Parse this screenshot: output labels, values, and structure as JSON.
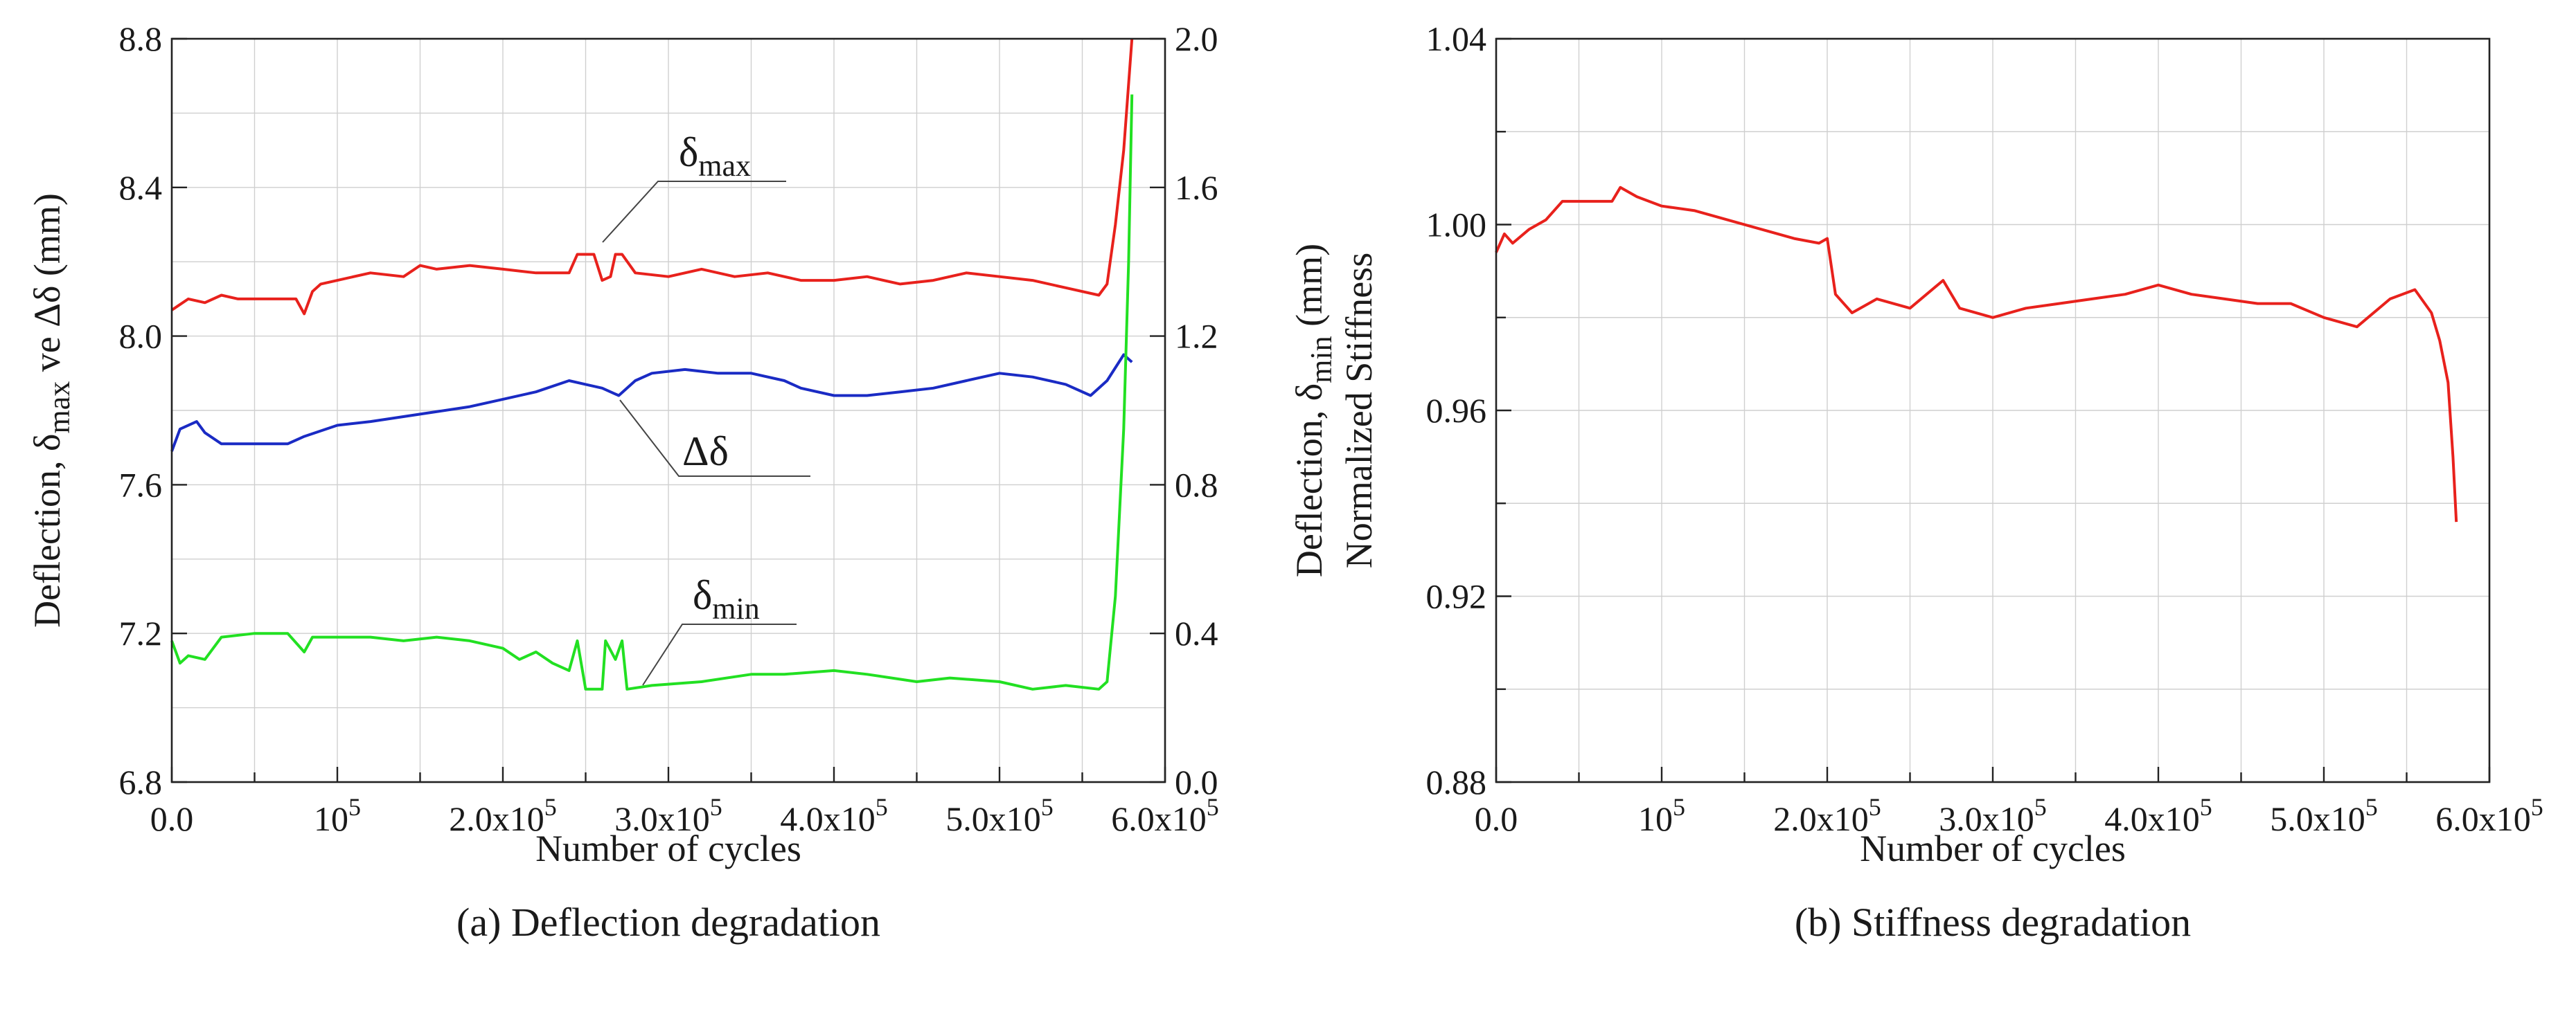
{
  "chart_data": [
    {
      "id": "a",
      "type": "line",
      "caption": "(a) Deflection degradation",
      "xlabel": "Number of cycles",
      "ylabel_left": {
        "main": "Deflection, δ",
        "sub": "max",
        "rest": " ve Δδ (mm)"
      },
      "ylabel_right": {
        "main": "Deflection, δ",
        "sub": "min",
        "rest": " (mm)"
      },
      "xlim": [
        0,
        600000
      ],
      "ylim_left": [
        6.8,
        8.8
      ],
      "ylim_right": [
        0.0,
        2.0
      ],
      "grid": true,
      "x_ticks": [
        {
          "value": 0,
          "base": "0.0",
          "sup": ""
        },
        {
          "value": 100000,
          "base": "10",
          "sup": "5"
        },
        {
          "value": 200000,
          "base": "2.0x10",
          "sup": "5"
        },
        {
          "value": 300000,
          "base": "3.0x10",
          "sup": "5"
        },
        {
          "value": 400000,
          "base": "4.0x10",
          "sup": "5"
        },
        {
          "value": 500000,
          "base": "5.0x10",
          "sup": "5"
        },
        {
          "value": 600000,
          "base": "6.0x10",
          "sup": "5"
        }
      ],
      "y_ticks_left": [
        {
          "value": 6.8,
          "label": "6.8"
        },
        {
          "value": 7.2,
          "label": "7.2"
        },
        {
          "value": 7.6,
          "label": "7.6"
        },
        {
          "value": 8.0,
          "label": "8.0"
        },
        {
          "value": 8.4,
          "label": "8.4"
        },
        {
          "value": 8.8,
          "label": "8.8"
        }
      ],
      "y_ticks_right": [
        {
          "value": 0.0,
          "label": "0.0"
        },
        {
          "value": 0.4,
          "label": "0.4"
        },
        {
          "value": 0.8,
          "label": "0.8"
        },
        {
          "value": 1.2,
          "label": "1.2"
        },
        {
          "value": 1.6,
          "label": "1.6"
        },
        {
          "value": 2.0,
          "label": "2.0"
        }
      ],
      "series": [
        {
          "name": "δmax",
          "color": "#e8211c",
          "axis": "left",
          "points": [
            [
              0,
              8.07
            ],
            [
              10000,
              8.1
            ],
            [
              20000,
              8.09
            ],
            [
              30000,
              8.11
            ],
            [
              40000,
              8.1
            ],
            [
              60000,
              8.1
            ],
            [
              75000,
              8.1
            ],
            [
              80000,
              8.06
            ],
            [
              85000,
              8.12
            ],
            [
              90000,
              8.14
            ],
            [
              100000,
              8.15
            ],
            [
              120000,
              8.17
            ],
            [
              140000,
              8.16
            ],
            [
              150000,
              8.19
            ],
            [
              160000,
              8.18
            ],
            [
              180000,
              8.19
            ],
            [
              200000,
              8.18
            ],
            [
              220000,
              8.17
            ],
            [
              240000,
              8.17
            ],
            [
              245000,
              8.22
            ],
            [
              255000,
              8.22
            ],
            [
              260000,
              8.15
            ],
            [
              265000,
              8.16
            ],
            [
              268000,
              8.22
            ],
            [
              272000,
              8.22
            ],
            [
              280000,
              8.17
            ],
            [
              300000,
              8.16
            ],
            [
              320000,
              8.18
            ],
            [
              340000,
              8.16
            ],
            [
              360000,
              8.17
            ],
            [
              380000,
              8.15
            ],
            [
              400000,
              8.15
            ],
            [
              420000,
              8.16
            ],
            [
              440000,
              8.14
            ],
            [
              460000,
              8.15
            ],
            [
              480000,
              8.17
            ],
            [
              500000,
              8.16
            ],
            [
              520000,
              8.15
            ],
            [
              540000,
              8.13
            ],
            [
              560000,
              8.11
            ],
            [
              565000,
              8.14
            ],
            [
              570000,
              8.3
            ],
            [
              575000,
              8.5
            ],
            [
              580000,
              8.8
            ]
          ]
        },
        {
          "name": "Δδ",
          "color": "#1a2bc4",
          "axis": "left",
          "points": [
            [
              0,
              7.69
            ],
            [
              5000,
              7.75
            ],
            [
              15000,
              7.77
            ],
            [
              20000,
              7.74
            ],
            [
              30000,
              7.71
            ],
            [
              50000,
              7.71
            ],
            [
              70000,
              7.71
            ],
            [
              80000,
              7.73
            ],
            [
              100000,
              7.76
            ],
            [
              120000,
              7.77
            ],
            [
              150000,
              7.79
            ],
            [
              180000,
              7.81
            ],
            [
              200000,
              7.83
            ],
            [
              220000,
              7.85
            ],
            [
              240000,
              7.88
            ],
            [
              250000,
              7.87
            ],
            [
              260000,
              7.86
            ],
            [
              270000,
              7.84
            ],
            [
              280000,
              7.88
            ],
            [
              290000,
              7.9
            ],
            [
              310000,
              7.91
            ],
            [
              330000,
              7.9
            ],
            [
              350000,
              7.9
            ],
            [
              370000,
              7.88
            ],
            [
              380000,
              7.86
            ],
            [
              400000,
              7.84
            ],
            [
              420000,
              7.84
            ],
            [
              440000,
              7.85
            ],
            [
              460000,
              7.86
            ],
            [
              480000,
              7.88
            ],
            [
              500000,
              7.9
            ],
            [
              520000,
              7.89
            ],
            [
              540000,
              7.87
            ],
            [
              555000,
              7.84
            ],
            [
              565000,
              7.88
            ],
            [
              575000,
              7.95
            ],
            [
              580000,
              7.93
            ]
          ]
        },
        {
          "name": "δmin",
          "color": "#22e022",
          "axis": "right",
          "points": [
            [
              0,
              0.38
            ],
            [
              5000,
              0.32
            ],
            [
              10000,
              0.34
            ],
            [
              20000,
              0.33
            ],
            [
              30000,
              0.39
            ],
            [
              50000,
              0.4
            ],
            [
              70000,
              0.4
            ],
            [
              80000,
              0.35
            ],
            [
              85000,
              0.39
            ],
            [
              100000,
              0.39
            ],
            [
              120000,
              0.39
            ],
            [
              140000,
              0.38
            ],
            [
              160000,
              0.39
            ],
            [
              180000,
              0.38
            ],
            [
              200000,
              0.36
            ],
            [
              210000,
              0.33
            ],
            [
              220000,
              0.35
            ],
            [
              230000,
              0.32
            ],
            [
              240000,
              0.3
            ],
            [
              245000,
              0.38
            ],
            [
              250000,
              0.25
            ],
            [
              260000,
              0.25
            ],
            [
              262000,
              0.38
            ],
            [
              268000,
              0.33
            ],
            [
              272000,
              0.38
            ],
            [
              275000,
              0.25
            ],
            [
              290000,
              0.26
            ],
            [
              320000,
              0.27
            ],
            [
              350000,
              0.29
            ],
            [
              370000,
              0.29
            ],
            [
              400000,
              0.3
            ],
            [
              420000,
              0.29
            ],
            [
              450000,
              0.27
            ],
            [
              470000,
              0.28
            ],
            [
              500000,
              0.27
            ],
            [
              520000,
              0.25
            ],
            [
              540000,
              0.26
            ],
            [
              560000,
              0.25
            ],
            [
              565000,
              0.27
            ],
            [
              570000,
              0.5
            ],
            [
              575000,
              0.95
            ],
            [
              578000,
              1.4
            ],
            [
              580000,
              1.85
            ]
          ]
        }
      ],
      "annotations": [
        {
          "main": "δ",
          "sub": "max"
        },
        {
          "main": "Δδ",
          "sub": ""
        },
        {
          "main": "δ",
          "sub": "min"
        }
      ]
    },
    {
      "id": "b",
      "type": "line",
      "caption": "(b) Stiffness degradation",
      "xlabel": "Number of cycles",
      "ylabel": "Normalized Stiffness",
      "xlim": [
        0,
        600000
      ],
      "ylim": [
        0.88,
        1.04
      ],
      "grid": true,
      "x_ticks": [
        {
          "value": 0,
          "base": "0.0",
          "sup": ""
        },
        {
          "value": 100000,
          "base": "10",
          "sup": "5"
        },
        {
          "value": 200000,
          "base": "2.0x10",
          "sup": "5"
        },
        {
          "value": 300000,
          "base": "3.0x10",
          "sup": "5"
        },
        {
          "value": 400000,
          "base": "4.0x10",
          "sup": "5"
        },
        {
          "value": 500000,
          "base": "5.0x10",
          "sup": "5"
        },
        {
          "value": 600000,
          "base": "6.0x10",
          "sup": "5"
        }
      ],
      "y_ticks": [
        {
          "value": 0.88,
          "label": "0.88"
        },
        {
          "value": 0.92,
          "label": "0.92"
        },
        {
          "value": 0.96,
          "label": "0.96"
        },
        {
          "value": 1.0,
          "label": "1.00"
        },
        {
          "value": 1.04,
          "label": "1.04"
        }
      ],
      "series": [
        {
          "name": "Normalized Stiffness",
          "color": "#e8211c",
          "points": [
            [
              0,
              0.994
            ],
            [
              5000,
              0.998
            ],
            [
              10000,
              0.996
            ],
            [
              20000,
              0.999
            ],
            [
              30000,
              1.001
            ],
            [
              40000,
              1.005
            ],
            [
              50000,
              1.005
            ],
            [
              60000,
              1.005
            ],
            [
              70000,
              1.005
            ],
            [
              75000,
              1.008
            ],
            [
              85000,
              1.006
            ],
            [
              100000,
              1.004
            ],
            [
              120000,
              1.003
            ],
            [
              140000,
              1.001
            ],
            [
              160000,
              0.999
            ],
            [
              180000,
              0.997
            ],
            [
              195000,
              0.996
            ],
            [
              200000,
              0.997
            ],
            [
              205000,
              0.985
            ],
            [
              215000,
              0.981
            ],
            [
              230000,
              0.984
            ],
            [
              250000,
              0.982
            ],
            [
              270000,
              0.988
            ],
            [
              280000,
              0.982
            ],
            [
              300000,
              0.98
            ],
            [
              320000,
              0.982
            ],
            [
              340000,
              0.983
            ],
            [
              360000,
              0.984
            ],
            [
              380000,
              0.985
            ],
            [
              400000,
              0.987
            ],
            [
              420000,
              0.985
            ],
            [
              440000,
              0.984
            ],
            [
              460000,
              0.983
            ],
            [
              480000,
              0.983
            ],
            [
              500000,
              0.98
            ],
            [
              520000,
              0.978
            ],
            [
              540000,
              0.984
            ],
            [
              555000,
              0.986
            ],
            [
              565000,
              0.981
            ],
            [
              570000,
              0.975
            ],
            [
              575000,
              0.966
            ],
            [
              578000,
              0.95
            ],
            [
              580000,
              0.936
            ]
          ]
        }
      ]
    }
  ]
}
